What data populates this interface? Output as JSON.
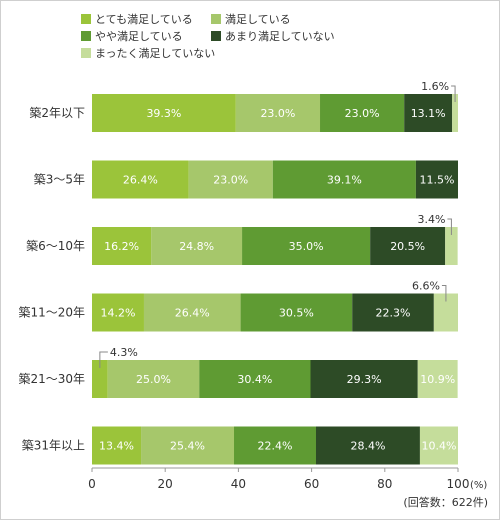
{
  "legend": [
    {
      "label": "とても満足している",
      "color": "#9bc43a"
    },
    {
      "label": "満足している",
      "color": "#a6c76b"
    },
    {
      "label": "やや満足している",
      "color": "#5f9b33"
    },
    {
      "label": "あまり満足していない",
      "color": "#2d4b26"
    },
    {
      "label": "まったく満足していない",
      "color": "#c5dd9b"
    }
  ],
  "chart_data": {
    "type": "bar",
    "orientation": "horizontal",
    "stacked": true,
    "categories": [
      "築2年以下",
      "築3～5年",
      "築6～10年",
      "築11～20年",
      "築21～30年",
      "築31年以上"
    ],
    "series": [
      {
        "name": "とても満足している",
        "color": "#9bc43a",
        "values": [
          39.3,
          26.4,
          16.2,
          14.2,
          4.3,
          13.4
        ],
        "labels": [
          "39.3%",
          "26.4%",
          "16.2%",
          "14.2%",
          "4.3%",
          "13.4%"
        ]
      },
      {
        "name": "満足している",
        "color": "#a6c76b",
        "values": [
          23.0,
          23.0,
          24.8,
          26.4,
          25.0,
          25.4
        ],
        "labels": [
          "23.0%",
          "23.0%",
          "24.8%",
          "26.4%",
          "25.0%",
          "25.4%"
        ]
      },
      {
        "name": "やや満足している",
        "color": "#5f9b33",
        "values": [
          23.0,
          39.1,
          35.0,
          30.5,
          30.4,
          22.4
        ],
        "labels": [
          "23.0%",
          "39.1%",
          "35.0%",
          "30.5%",
          "30.4%",
          "22.4%"
        ]
      },
      {
        "name": "あまり満足していない",
        "color": "#2d4b26",
        "values": [
          13.1,
          11.5,
          20.5,
          22.3,
          29.3,
          28.4
        ],
        "labels": [
          "13.1%",
          "11.5%",
          "20.5%",
          "22.3%",
          "29.3%",
          "28.4%"
        ]
      },
      {
        "name": "まったく満足していない",
        "color": "#c5dd9b",
        "values": [
          1.6,
          0.0,
          3.4,
          6.6,
          10.9,
          10.4
        ],
        "labels": [
          "1.6%",
          "",
          "3.4%",
          "6.6%",
          "10.9%",
          "10.4%"
        ]
      }
    ],
    "xlim": [
      0,
      100
    ],
    "xticks": [
      "0",
      "20",
      "40",
      "60",
      "80",
      "100"
    ],
    "xunit": "(%)",
    "note": "(回答数：622件)",
    "grid": false,
    "legend_position": "top"
  }
}
